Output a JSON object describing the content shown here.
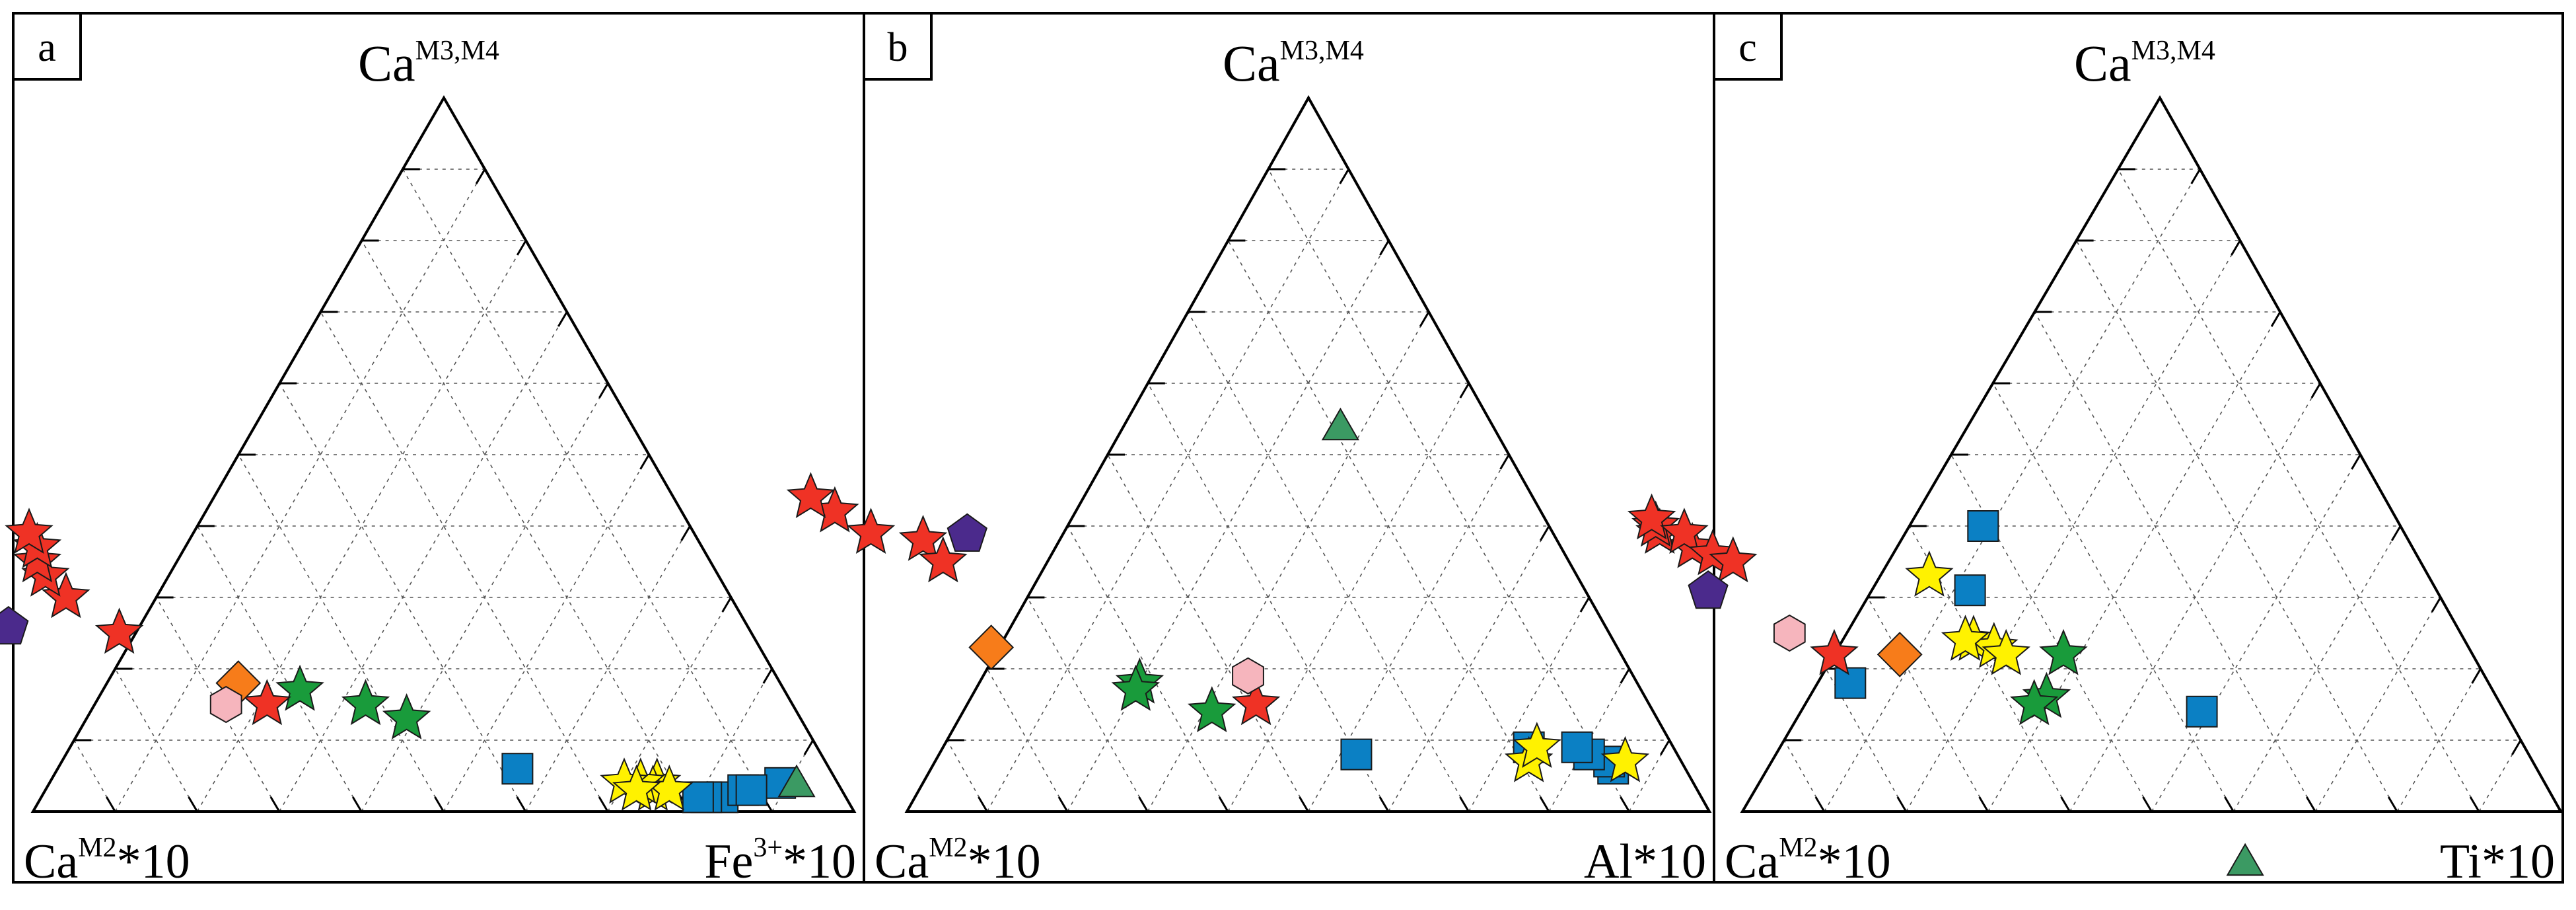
{
  "colors": {
    "blue_square": "#0b80c4",
    "yellow_star": "#fff200",
    "green_star": "#199b3b",
    "green_triangle": "#3b9a63",
    "red_star": "#ef3225",
    "orange_diamond": "#f77c1a",
    "pink_hexagon": "#f6b5bd",
    "purple_pentagon": "#4b2a8c"
  },
  "chart_data": [
    {
      "type": "ternary-scatter",
      "panel_label": "a",
      "top_label": {
        "base": "Ca",
        "sup": "M3,M4"
      },
      "left_label": {
        "base": "Ca",
        "sup": "M2",
        "suffix": "*10"
      },
      "right_label": {
        "base": "Fe",
        "sup": "3+",
        "suffix": "*10"
      },
      "grid": "dotted, 0.1 steps",
      "series": [
        {
          "name": "blue-square",
          "shape": "square",
          "points": [
            [
              0.02,
              0.15,
              0.83
            ],
            [
              0.02,
              0.17,
              0.81
            ],
            [
              0.02,
              0.18,
              0.8
            ],
            [
              0.03,
              0.12,
              0.85
            ],
            [
              0.04,
              0.07,
              0.89
            ],
            [
              0.03,
              0.11,
              0.86
            ],
            [
              0.06,
              0.38,
              0.56
            ]
          ]
        },
        {
          "name": "yellow-star",
          "shape": "star",
          "points": [
            [
              0.04,
              0.22,
              0.74
            ],
            [
              0.03,
              0.23,
              0.74
            ],
            [
              0.04,
              0.24,
              0.72
            ],
            [
              0.03,
              0.21,
              0.76
            ],
            [
              0.04,
              0.26,
              0.7
            ],
            [
              0.03,
              0.25,
              0.72
            ]
          ]
        },
        {
          "name": "green-triangle",
          "shape": "triangle",
          "points": [
            [
              0.04,
              0.05,
              0.91
            ]
          ]
        },
        {
          "name": "green-star",
          "shape": "star",
          "points": [
            [
              0.15,
              0.52,
              0.33
            ],
            [
              0.13,
              0.48,
              0.39
            ],
            [
              0.17,
              0.59,
              0.24
            ]
          ]
        },
        {
          "name": "red-star",
          "shape": "star",
          "points": [
            [
              0.15,
              0.64,
              0.21
            ],
            [
              0.25,
              0.77,
              -0.02
            ],
            [
              0.3,
              0.81,
              -0.11
            ],
            [
              0.33,
              0.82,
              -0.15
            ],
            [
              0.35,
              0.82,
              -0.17
            ],
            [
              0.37,
              0.81,
              -0.18
            ],
            [
              0.39,
              0.81,
              -0.2
            ]
          ]
        },
        {
          "name": "orange-diamond",
          "shape": "diamond",
          "points": [
            [
              0.18,
              0.66,
              0.16
            ]
          ]
        },
        {
          "name": "pink-hexagon",
          "shape": "hexagon",
          "points": [
            [
              0.15,
              0.69,
              0.16
            ]
          ]
        },
        {
          "name": "purple-pentagon",
          "shape": "pentagon",
          "points": [
            [
              0.26,
              0.9,
              -0.16
            ]
          ]
        }
      ]
    },
    {
      "type": "ternary-scatter",
      "panel_label": "b",
      "top_label": {
        "base": "Ca",
        "sup": "M3,M4"
      },
      "left_label": {
        "base": "Ca",
        "sup": "M2",
        "suffix": "*10"
      },
      "right_label": {
        "base": "Al",
        "sup": "",
        "suffix": "*10"
      },
      "grid": "dotted, 0.1 steps",
      "series": [
        {
          "name": "blue-square",
          "shape": "square",
          "points": [
            [
              0.06,
              0.09,
              0.85
            ],
            [
              0.07,
              0.09,
              0.84
            ],
            [
              0.08,
              0.11,
              0.81
            ],
            [
              0.09,
              0.12,
              0.79
            ],
            [
              0.09,
              0.18,
              0.73
            ],
            [
              0.08,
              0.4,
              0.52
            ]
          ]
        },
        {
          "name": "green-triangle",
          "shape": "triangle",
          "points": [
            [
              0.54,
              0.19,
              0.27
            ]
          ]
        },
        {
          "name": "yellow-star",
          "shape": "star",
          "points": [
            [
              0.07,
              0.19,
              0.74
            ],
            [
              0.09,
              0.17,
              0.74
            ],
            [
              0.07,
              0.07,
              0.86
            ]
          ]
        },
        {
          "name": "green-star",
          "shape": "star",
          "points": [
            [
              0.14,
              0.55,
              0.31
            ],
            [
              0.18,
              0.62,
              0.2
            ],
            [
              0.17,
              0.63,
              0.2
            ]
          ]
        },
        {
          "name": "orange-diamond",
          "shape": "diamond",
          "points": [
            [
              0.23,
              0.78,
              -0.01
            ]
          ]
        },
        {
          "name": "red-star",
          "shape": "star",
          "points": [
            [
              0.15,
              0.49,
              0.36
            ],
            [
              0.38,
              0.79,
              -0.17
            ],
            [
              0.35,
              0.78,
              -0.13
            ],
            [
              0.39,
              0.85,
              -0.24
            ],
            [
              0.42,
              0.88,
              -0.3
            ],
            [
              0.44,
              0.9,
              -0.34
            ]
          ]
        },
        {
          "name": "pink-hexagon",
          "shape": "hexagon",
          "points": [
            [
              0.19,
              0.48,
              0.33
            ]
          ]
        },
        {
          "name": "purple-pentagon",
          "shape": "pentagon",
          "points": [
            [
              0.39,
              0.73,
              -0.12
            ]
          ]
        }
      ]
    },
    {
      "type": "ternary-scatter",
      "panel_label": "c",
      "top_label": {
        "base": "Ca",
        "sup": "M3,M4"
      },
      "left_label": {
        "base": "Ca",
        "sup": "M2",
        "suffix": "*10"
      },
      "right_label": {
        "base": "Ti",
        "sup": "",
        "suffix": "*10"
      },
      "grid": "dotted, 0.1 steps",
      "series": [
        {
          "name": "blue-square",
          "shape": "square",
          "points": [
            [
              0.18,
              0.78,
              0.04
            ],
            [
              0.4,
              0.51,
              0.09
            ],
            [
              0.31,
              0.57,
              0.12
            ],
            [
              0.14,
              0.37,
              0.49
            ]
          ]
        },
        {
          "name": "yellow-star",
          "shape": "star",
          "points": [
            [
              0.33,
              0.61,
              0.06
            ],
            [
              0.24,
              0.6,
              0.16
            ],
            [
              0.23,
              0.58,
              0.19
            ],
            [
              0.22,
              0.57,
              0.21
            ],
            [
              0.24,
              0.61,
              0.15
            ]
          ]
        },
        {
          "name": "green-triangle",
          "shape": "triangle",
          "points": [
            [
              -0.07,
              0.42,
              0.65
            ]
          ]
        },
        {
          "name": "green-star",
          "shape": "star",
          "points": [
            [
              0.22,
              0.5,
              0.28
            ],
            [
              0.16,
              0.55,
              0.29
            ],
            [
              0.15,
              0.57,
              0.28
            ]
          ]
        },
        {
          "name": "pink-hexagon",
          "shape": "hexagon",
          "points": [
            [
              0.25,
              0.82,
              -0.07
            ]
          ]
        },
        {
          "name": "red-star",
          "shape": "star",
          "points": [
            [
              0.37,
              0.88,
              -0.25
            ],
            [
              0.39,
              0.91,
              -0.3
            ],
            [
              0.4,
              0.91,
              -0.31
            ],
            [
              0.41,
              0.91,
              -0.32
            ],
            [
              0.39,
              0.88,
              -0.27
            ],
            [
              0.36,
              0.86,
              -0.22
            ],
            [
              0.35,
              0.84,
              -0.19
            ],
            [
              0.22,
              0.78,
              0.0
            ]
          ]
        },
        {
          "name": "orange-diamond",
          "shape": "diamond",
          "points": [
            [
              0.22,
              0.7,
              0.08
            ]
          ]
        },
        {
          "name": "purple-pentagon",
          "shape": "pentagon",
          "points": [
            [
              0.31,
              0.89,
              -0.2
            ]
          ]
        }
      ]
    }
  ]
}
